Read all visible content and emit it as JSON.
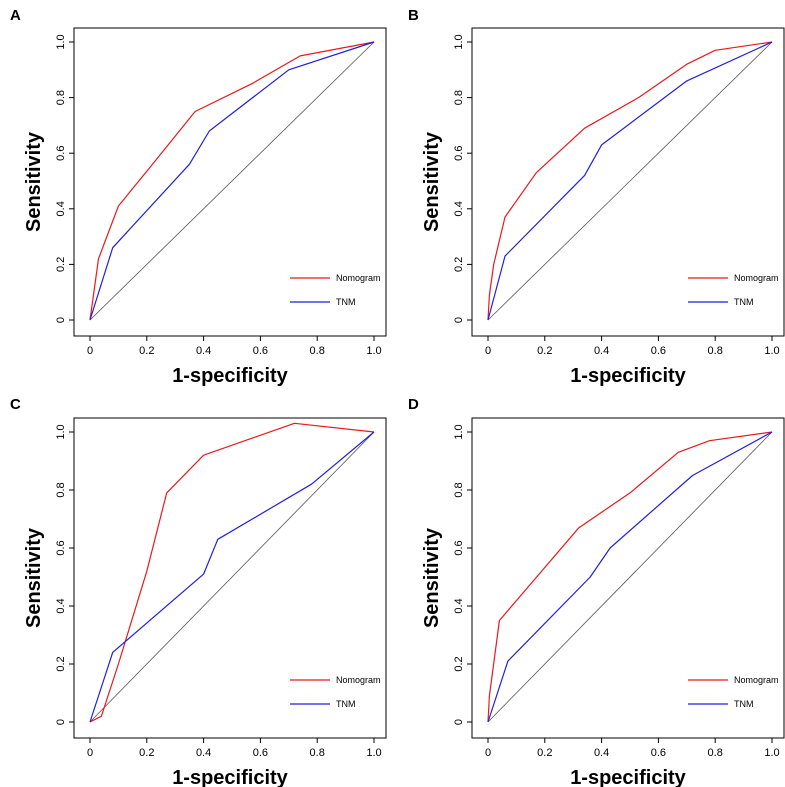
{
  "colors": {
    "nomogram": "#e8191c",
    "tnm": "#1f1fe0",
    "diagonal": "#555555",
    "axis": "#000000"
  },
  "chart_data": [
    {
      "panel": "A",
      "type": "line",
      "xlabel": "1-specificity",
      "ylabel": "Sensitivity",
      "xlim": [
        0,
        1
      ],
      "ylim": [
        0,
        1
      ],
      "xticks": [
        "0",
        "0.2",
        "0.4",
        "0.6",
        "0.8",
        "1.0"
      ],
      "yticks": [
        "0",
        "0.2",
        "0.4",
        "0.6",
        "0.8",
        "1.0"
      ],
      "legend": [
        "Nomogram",
        "TNM"
      ],
      "series": [
        {
          "name": "Nomogram",
          "color": "#e8191c",
          "x": [
            0,
            0.03,
            0.1,
            0.22,
            0.37,
            0.57,
            0.74,
            1.0
          ],
          "y": [
            0,
            0.22,
            0.41,
            0.56,
            0.75,
            0.85,
            0.95,
            1.0
          ]
        },
        {
          "name": "TNM",
          "color": "#1f1fe0",
          "x": [
            0,
            0.08,
            0.35,
            0.42,
            0.7,
            1.0
          ],
          "y": [
            0,
            0.26,
            0.56,
            0.68,
            0.9,
            1.0
          ]
        }
      ]
    },
    {
      "panel": "B",
      "type": "line",
      "xlabel": "1-specificity",
      "ylabel": "Sensitivity",
      "xlim": [
        0,
        1
      ],
      "ylim": [
        0,
        1
      ],
      "xticks": [
        "0",
        "0.2",
        "0.4",
        "0.6",
        "0.8",
        "1.0"
      ],
      "yticks": [
        "0",
        "0.2",
        "0.4",
        "0.6",
        "0.8",
        "1.0"
      ],
      "legend": [
        "Nomogram",
        "TNM"
      ],
      "series": [
        {
          "name": "Nomogram",
          "color": "#e8191c",
          "x": [
            0,
            0.005,
            0.02,
            0.06,
            0.17,
            0.34,
            0.53,
            0.7,
            0.8,
            1.0
          ],
          "y": [
            0,
            0.09,
            0.2,
            0.37,
            0.53,
            0.69,
            0.8,
            0.92,
            0.97,
            1.0
          ]
        },
        {
          "name": "TNM",
          "color": "#1f1fe0",
          "x": [
            0,
            0.06,
            0.34,
            0.4,
            0.7,
            1.0
          ],
          "y": [
            0,
            0.23,
            0.52,
            0.63,
            0.86,
            1.0
          ]
        }
      ]
    },
    {
      "panel": "C",
      "type": "line",
      "xlabel": "1-specificity",
      "ylabel": "Sensitivity",
      "xlim": [
        0,
        1
      ],
      "ylim": [
        0,
        1
      ],
      "xticks": [
        "0",
        "0.2",
        "0.4",
        "0.6",
        "0.8",
        "1.0"
      ],
      "yticks": [
        "0",
        "0.2",
        "0.4",
        "0.6",
        "0.8",
        "1.0"
      ],
      "legend": [
        "Nomogram",
        "TNM"
      ],
      "series": [
        {
          "name": "Nomogram",
          "color": "#e8191c",
          "x": [
            0,
            0.04,
            0.1,
            0.2,
            0.27,
            0.4,
            0.72,
            1.0
          ],
          "y": [
            0,
            0.02,
            0.2,
            0.52,
            0.79,
            0.92,
            1.03,
            1.0
          ]
        },
        {
          "name": "TNM",
          "color": "#1f1fe0",
          "x": [
            0,
            0.08,
            0.4,
            0.45,
            0.78,
            1.0
          ],
          "y": [
            0,
            0.24,
            0.51,
            0.63,
            0.82,
            1.0
          ]
        }
      ]
    },
    {
      "panel": "D",
      "type": "line",
      "xlabel": "1-specificity",
      "ylabel": "Sensitivity",
      "xlim": [
        0,
        1
      ],
      "ylim": [
        0,
        1
      ],
      "xticks": [
        "0",
        "0.2",
        "0.4",
        "0.6",
        "0.8",
        "1.0"
      ],
      "yticks": [
        "0",
        "0.2",
        "0.4",
        "0.6",
        "0.8",
        "1.0"
      ],
      "legend": [
        "Nomogram",
        "TNM"
      ],
      "series": [
        {
          "name": "Nomogram",
          "color": "#e8191c",
          "x": [
            0,
            0.005,
            0.04,
            0.18,
            0.32,
            0.5,
            0.67,
            0.78,
            1.0
          ],
          "y": [
            0,
            0.09,
            0.35,
            0.51,
            0.67,
            0.79,
            0.93,
            0.97,
            1.0
          ]
        },
        {
          "name": "TNM",
          "color": "#1f1fe0",
          "x": [
            0,
            0.07,
            0.36,
            0.43,
            0.72,
            1.0
          ],
          "y": [
            0,
            0.21,
            0.5,
            0.6,
            0.85,
            1.0
          ]
        }
      ]
    }
  ]
}
